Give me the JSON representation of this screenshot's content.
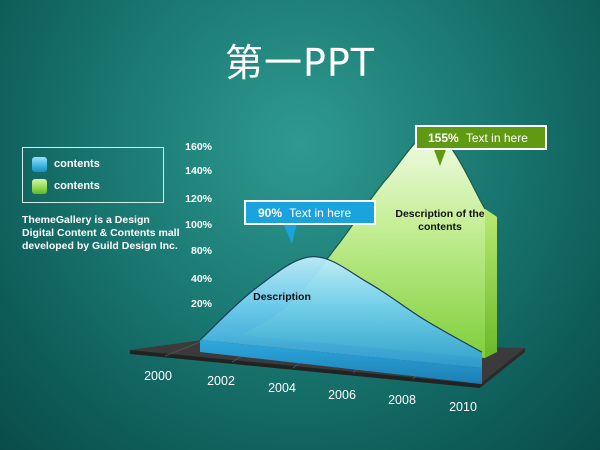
{
  "slide": {
    "title": "第一PPT",
    "description": "ThemeGallery is a Design Digital Content & Contents mall developed by Guild Design Inc."
  },
  "legend": [
    {
      "label": "contents",
      "color": "#3ab2e0"
    },
    {
      "label": "contents",
      "color": "#8fd84c"
    }
  ],
  "colors": {
    "blue_area": "#4cc0e8",
    "green_area": "#9be05a",
    "callout_blue": "#1aa3dc",
    "callout_green": "#5f9a12",
    "floor": "#3a3a3a"
  },
  "chart_data": {
    "type": "area",
    "x": [
      "2000",
      "2002",
      "2004",
      "2006",
      "2008",
      "2010"
    ],
    "y_ticks": [
      "20%",
      "40%",
      "80%",
      "100%",
      "120%",
      "140%",
      "160%"
    ],
    "series": [
      {
        "values": [
          0,
          55,
          90,
          70,
          40,
          15
        ]
      },
      {
        "values": [
          0,
          25,
          70,
          120,
          155,
          105
        ]
      }
    ],
    "area_labels": [
      "Description",
      "Description of the contents"
    ],
    "annotations": [
      {
        "value": "90%",
        "text": "Text in here"
      },
      {
        "value": "155%",
        "text": "Text in here"
      }
    ]
  }
}
